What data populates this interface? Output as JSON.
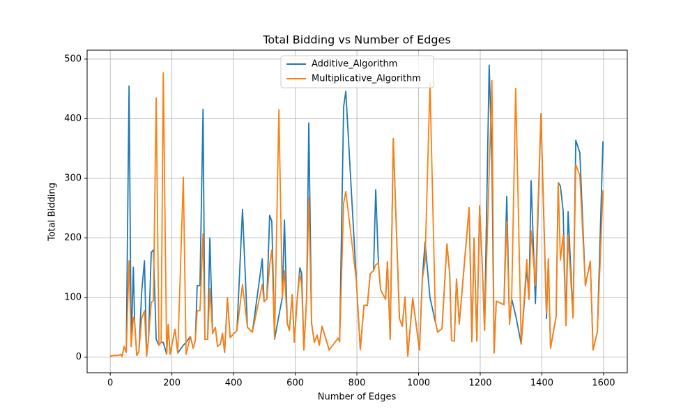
{
  "chart_data": {
    "type": "line",
    "title": "Total Bidding vs Number of Edges",
    "xlabel": "Number of Edges",
    "ylabel": "Total Bidding",
    "xlim": [
      -75,
      1677
    ],
    "ylim": [
      -26,
      515
    ],
    "xticks": [
      0,
      200,
      400,
      600,
      800,
      1000,
      1200,
      1400,
      1600
    ],
    "yticks": [
      0,
      100,
      200,
      300,
      400,
      500
    ],
    "grid": true,
    "legend": "upper center",
    "x": [
      0,
      16,
      27,
      34,
      38,
      45,
      52,
      61,
      68,
      75,
      79,
      86,
      93,
      102,
      111,
      118,
      124,
      133,
      140,
      149,
      158,
      165,
      172,
      183,
      188,
      194,
      210,
      219,
      237,
      246,
      260,
      269,
      276,
      282,
      291,
      301,
      307,
      316,
      323,
      332,
      341,
      348,
      357,
      364,
      371,
      380,
      389,
      411,
      429,
      445,
      461,
      493,
      499,
      508,
      517,
      524,
      533,
      547,
      558,
      565,
      574,
      581,
      590,
      597,
      606,
      615,
      621,
      628,
      637,
      644,
      653,
      662,
      671,
      678,
      687,
      710,
      739,
      744,
      757,
      764,
      798,
      811,
      823,
      834,
      843,
      854,
      861,
      870,
      877,
      893,
      899,
      908,
      918,
      938,
      947,
      956,
      965,
      981,
      1003,
      1012,
      1021,
      1037,
      1055,
      1062,
      1076,
      1092,
      1101,
      1107,
      1116,
      1123,
      1132,
      1164,
      1173,
      1180,
      1189,
      1198,
      1207,
      1214,
      1229,
      1238,
      1245,
      1252,
      1277,
      1286,
      1295,
      1302,
      1315,
      1333,
      1351,
      1358,
      1365,
      1379,
      1397,
      1415,
      1421,
      1428,
      1446,
      1453,
      1460,
      1469,
      1478,
      1485,
      1501,
      1510,
      1523,
      1541,
      1557,
      1566,
      1580,
      1598
    ],
    "series": [
      {
        "name": "Additive_Algorithm",
        "color": "#1f77b4",
        "values": [
          2,
          3,
          3,
          5,
          1,
          18,
          8,
          455,
          18,
          151,
          60,
          3,
          10,
          110,
          162,
          2,
          30,
          176,
          180,
          30,
          20,
          25,
          25,
          5,
          55,
          5,
          47,
          7,
          20,
          25,
          35,
          15,
          28,
          120,
          120,
          416,
          30,
          30,
          200,
          40,
          50,
          18,
          22,
          40,
          8,
          100,
          33,
          45,
          248,
          50,
          42,
          165,
          93,
          98,
          238,
          228,
          30,
          70,
          100,
          230,
          57,
          45,
          105,
          25,
          95,
          150,
          140,
          12,
          100,
          393,
          57,
          25,
          37,
          20,
          52,
          12,
          32,
          26,
          420,
          446,
          130,
          13,
          87,
          87,
          140,
          145,
          281,
          155,
          113,
          97,
          160,
          30,
          367,
          65,
          52,
          101,
          2,
          99,
          12,
          130,
          193,
          100,
          58,
          42,
          48,
          190,
          140,
          28,
          27,
          131,
          56,
          251,
          26,
          200,
          27,
          254,
          150,
          45,
          490,
          330,
          7,
          94,
          88,
          270,
          55,
          98,
          70,
          22,
          150,
          97,
          296,
          90,
          408,
          65,
          165,
          15,
          68,
          293,
          287,
          245,
          53,
          244,
          66,
          364,
          343,
          120,
          161,
          12,
          43,
          362
        ]
      },
      {
        "name": "Multiplicative_Algorithm",
        "color": "#ff7f0e",
        "values": [
          2,
          3,
          3,
          5,
          1,
          18,
          8,
          162,
          18,
          67,
          60,
          3,
          10,
          65,
          78,
          2,
          30,
          92,
          95,
          435,
          20,
          25,
          477,
          5,
          55,
          5,
          47,
          7,
          302,
          5,
          35,
          15,
          28,
          78,
          78,
          207,
          30,
          30,
          115,
          40,
          50,
          18,
          22,
          40,
          8,
          100,
          33,
          45,
          122,
          50,
          42,
          122,
          93,
          98,
          155,
          180,
          30,
          415,
          100,
          145,
          57,
          45,
          105,
          25,
          95,
          140,
          120,
          12,
          100,
          268,
          57,
          25,
          37,
          20,
          52,
          12,
          32,
          26,
          258,
          278,
          130,
          13,
          87,
          87,
          140,
          145,
          155,
          158,
          113,
          97,
          160,
          30,
          367,
          65,
          52,
          101,
          2,
          99,
          12,
          130,
          160,
          460,
          58,
          42,
          48,
          190,
          140,
          28,
          27,
          131,
          56,
          251,
          26,
          200,
          27,
          254,
          150,
          45,
          310,
          464,
          7,
          94,
          88,
          228,
          55,
          98,
          451,
          22,
          164,
          97,
          212,
          120,
          408,
          73,
          165,
          15,
          68,
          293,
          163,
          205,
          53,
          205,
          66,
          323,
          305,
          120,
          161,
          12,
          43,
          280
        ]
      }
    ]
  }
}
